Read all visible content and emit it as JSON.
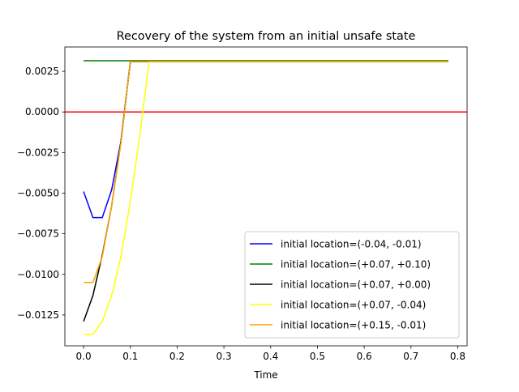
{
  "chart_data": {
    "type": "line",
    "title": "Recovery of the system from an initial unsafe state",
    "xlabel": "Time",
    "ylabel": "",
    "xlim": [
      -0.04,
      0.82
    ],
    "ylim": [
      -0.0144,
      0.004
    ],
    "xticks": [
      0.0,
      0.1,
      0.2,
      0.3,
      0.4,
      0.5,
      0.6,
      0.7,
      0.8
    ],
    "xtick_labels": [
      "0.0",
      "0.1",
      "0.2",
      "0.3",
      "0.4",
      "0.5",
      "0.6",
      "0.7",
      "0.8"
    ],
    "yticks": [
      0.0025,
      0.0,
      -0.0025,
      -0.005,
      -0.0075,
      -0.01,
      -0.0125
    ],
    "ytick_labels": [
      "0.0025",
      "0.0000",
      "−0.0025",
      "−0.0050",
      "−0.0075",
      "−0.0100",
      "−0.0125"
    ],
    "grid": false,
    "legend_position": "lower right",
    "hline": {
      "y": 0.0,
      "color": "#ff0000"
    },
    "series": [
      {
        "name": "initial location=(-0.04, -0.01)",
        "color": "#0000ff",
        "x": [
          0.0,
          0.02,
          0.04,
          0.06,
          0.08,
          0.1,
          0.12,
          0.14,
          0.16,
          0.18,
          0.2,
          0.3,
          0.4,
          0.5,
          0.6,
          0.7,
          0.78
        ],
        "y": [
          -0.0049,
          -0.0065,
          -0.0065,
          -0.0048,
          -0.0018,
          0.0031,
          0.0031,
          0.0031,
          0.0031,
          0.0031,
          0.0031,
          0.0031,
          0.0031,
          0.0031,
          0.0031,
          0.0031,
          0.0031
        ]
      },
      {
        "name": "initial location=(+0.07, +0.10)",
        "color": "#008000",
        "x": [
          0.0,
          0.1,
          0.2,
          0.3,
          0.4,
          0.5,
          0.6,
          0.7,
          0.78
        ],
        "y": [
          0.00315,
          0.00315,
          0.00315,
          0.00315,
          0.00315,
          0.00315,
          0.00315,
          0.00315,
          0.00315
        ]
      },
      {
        "name": "initial location=(+0.07, +0.00)",
        "color": "#000000",
        "x": [
          0.0,
          0.02,
          0.04,
          0.06,
          0.08,
          0.1,
          0.12,
          0.14,
          0.16,
          0.18,
          0.2,
          0.3,
          0.4,
          0.5,
          0.6,
          0.7,
          0.78
        ],
        "y": [
          -0.0129,
          -0.0113,
          -0.0088,
          -0.0058,
          -0.0018,
          0.0031,
          0.0031,
          0.0031,
          0.0031,
          0.0031,
          0.0031,
          0.0031,
          0.0031,
          0.0031,
          0.0031,
          0.0031,
          0.0031
        ]
      },
      {
        "name": "initial location=(+0.07, -0.04)",
        "color": "#ffff00",
        "x": [
          0.0,
          0.02,
          0.04,
          0.06,
          0.08,
          0.1,
          0.12,
          0.14,
          0.16,
          0.18,
          0.2,
          0.3,
          0.4,
          0.5,
          0.6,
          0.7,
          0.78
        ],
        "y": [
          -0.0137,
          -0.0137,
          -0.0129,
          -0.0113,
          -0.0089,
          -0.0055,
          -0.0015,
          0.0031,
          0.0031,
          0.0031,
          0.0031,
          0.0031,
          0.0031,
          0.0031,
          0.0031,
          0.0031,
          0.0031
        ]
      },
      {
        "name": "initial location=(+0.15, -0.01)",
        "color": "#ffa500",
        "x": [
          0.0,
          0.02,
          0.04,
          0.06,
          0.08,
          0.1,
          0.12,
          0.14,
          0.16,
          0.18,
          0.2,
          0.3,
          0.4,
          0.5,
          0.6,
          0.7,
          0.78
        ],
        "y": [
          -0.0105,
          -0.0105,
          -0.0089,
          -0.0058,
          -0.0019,
          0.0031,
          0.0031,
          0.0031,
          0.0031,
          0.0031,
          0.0031,
          0.0031,
          0.0031,
          0.0031,
          0.0031,
          0.0031,
          0.0031
        ]
      }
    ]
  }
}
